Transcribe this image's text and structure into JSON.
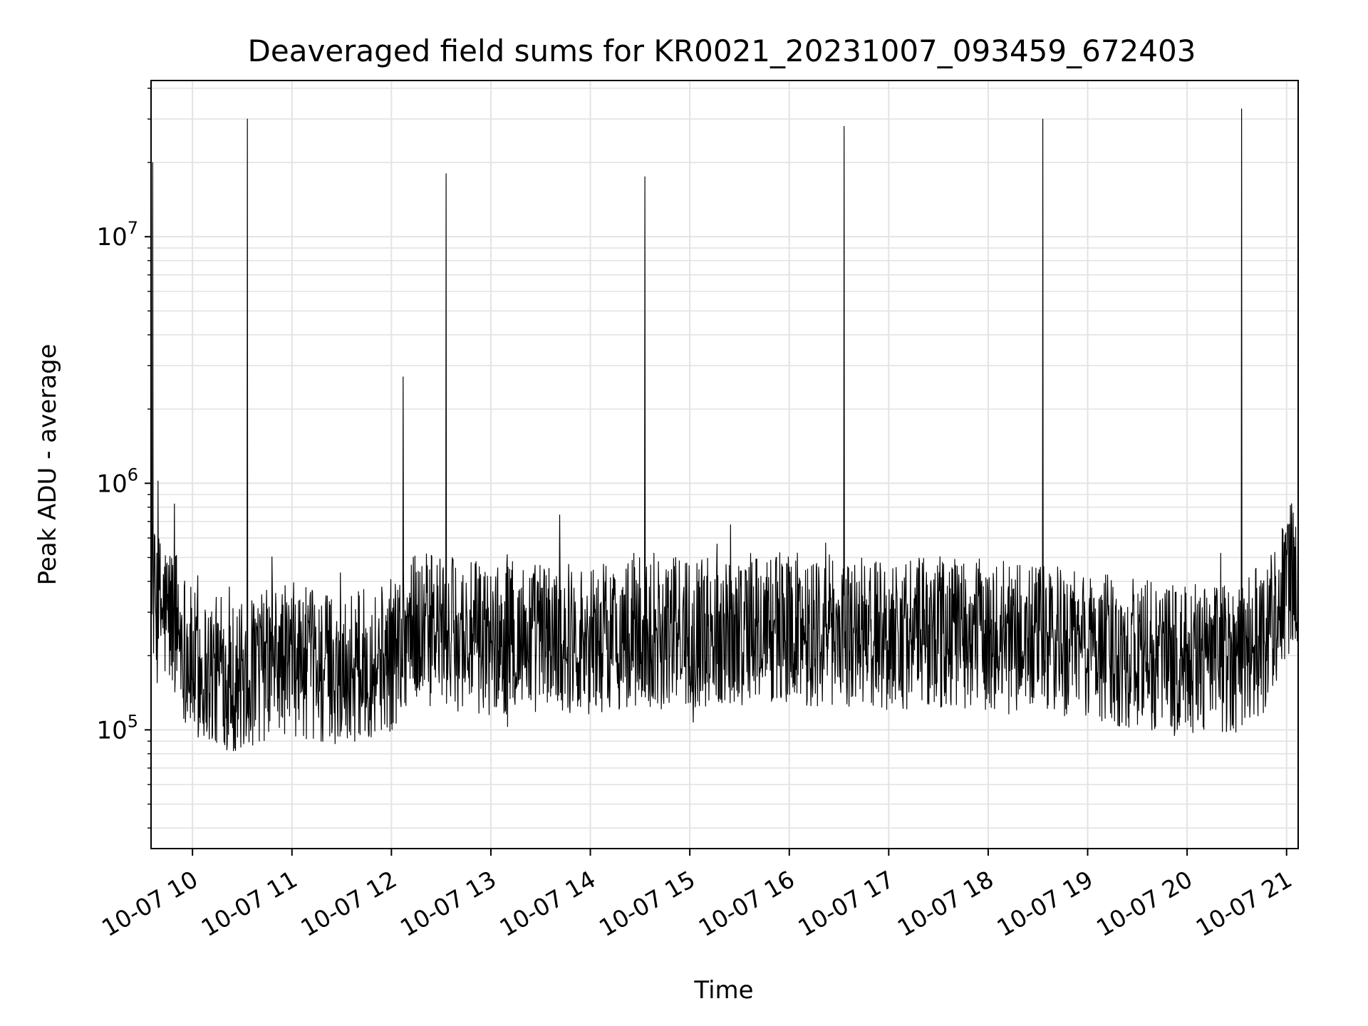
{
  "chart_data": {
    "type": "line",
    "title": "Deaveraged field sums for KR0021_20231007_093459_672403",
    "xlabel": "Time",
    "ylabel": "Peak ADU - average",
    "x_range": [
      "2023-10-07 09:35",
      "2023-10-07 21:07"
    ],
    "ylim": [
      33000,
      43000000
    ],
    "y_scale": "log",
    "grid": true,
    "line_color": "#000000",
    "x_ticks": [
      "10-07 10",
      "10-07 11",
      "10-07 12",
      "10-07 13",
      "10-07 14",
      "10-07 15",
      "10-07 16",
      "10-07 17",
      "10-07 18",
      "10-07 19",
      "10-07 20",
      "10-07 21"
    ],
    "y_ticks": [
      {
        "base": "10",
        "exp": "5",
        "value": 100000
      },
      {
        "base": "10",
        "exp": "6",
        "value": 1000000
      },
      {
        "base": "10",
        "exp": "7",
        "value": 10000000
      }
    ],
    "series": [
      {
        "x": [
          "2023-10-07 09:35",
          "2023-10-07 09:37",
          "2023-10-07 09:43",
          "2023-10-07 09:50",
          "2023-10-07 10:00",
          "2023-10-07 10:15",
          "2023-10-07 10:30",
          "2023-10-07 10:45",
          "2023-10-07 11:00",
          "2023-10-07 11:15",
          "2023-10-07 11:30",
          "2023-10-07 11:45",
          "2023-10-07 12:00",
          "2023-10-07 12:10",
          "2023-10-07 12:30",
          "2023-10-07 13:00",
          "2023-10-07 13:30",
          "2023-10-07 14:00",
          "2023-10-07 14:30",
          "2023-10-07 15:00",
          "2023-10-07 15:30",
          "2023-10-07 16:00",
          "2023-10-07 16:30",
          "2023-10-07 17:00",
          "2023-10-07 17:30",
          "2023-10-07 18:00",
          "2023-10-07 18:30",
          "2023-10-07 19:00",
          "2023-10-07 19:30",
          "2023-10-07 20:00",
          "2023-10-07 20:30",
          "2023-10-07 20:45",
          "2023-10-07 21:00",
          "2023-10-07 21:07"
        ],
        "y": [
          600000,
          320000,
          300000,
          280000,
          180000,
          170000,
          160000,
          185000,
          195000,
          180000,
          175000,
          185000,
          200000,
          260000,
          250000,
          230000,
          240000,
          235000,
          245000,
          250000,
          255000,
          260000,
          250000,
          245000,
          250000,
          240000,
          230000,
          220000,
          200000,
          190000,
          200000,
          230000,
          380000,
          450000
        ]
      }
    ],
    "spikes": [
      {
        "x": "2023-10-07 09:36",
        "y": 20000000
      },
      {
        "x": "2023-10-07 10:33",
        "y": 30000000
      },
      {
        "x": "2023-10-07 12:07",
        "y": 2700000
      },
      {
        "x": "2023-10-07 12:33",
        "y": 18000000
      },
      {
        "x": "2023-10-07 14:33",
        "y": 17500000
      },
      {
        "x": "2023-10-07 16:33",
        "y": 28000000
      },
      {
        "x": "2023-10-07 18:33",
        "y": 30000000
      },
      {
        "x": "2023-10-07 20:33",
        "y": 33000000
      }
    ]
  }
}
